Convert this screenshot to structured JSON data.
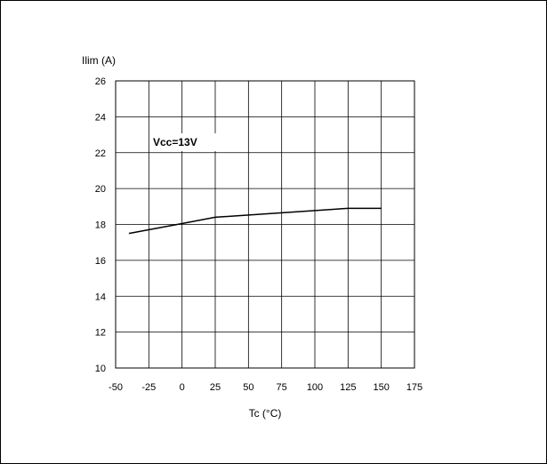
{
  "chart_data": {
    "type": "line",
    "xlabel": "Tc (°C)",
    "ylabel": "Ilim (A)",
    "xlim": [
      -50,
      175
    ],
    "ylim": [
      10,
      26
    ],
    "x_ticks": [
      -50,
      -25,
      0,
      25,
      50,
      75,
      100,
      125,
      150,
      175
    ],
    "y_ticks": [
      10,
      12,
      14,
      16,
      18,
      20,
      22,
      24,
      26
    ],
    "grid": true,
    "annotation": "Vcc=13V",
    "series": [
      {
        "x": [
          -40,
          0,
          25,
          125,
          150
        ],
        "y": [
          17.5,
          18.05,
          18.4,
          18.9,
          18.9
        ]
      }
    ]
  }
}
